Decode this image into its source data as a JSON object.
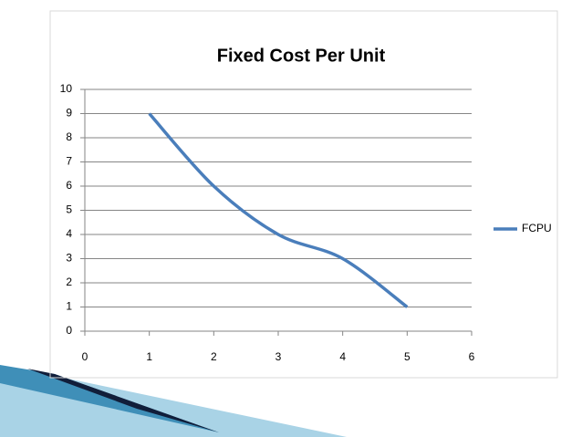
{
  "chart_data": {
    "type": "line",
    "title": "Fixed Cost Per Unit",
    "x": [
      1,
      2,
      3,
      4,
      5
    ],
    "series": [
      {
        "name": "FCPU",
        "color": "#4a7ebb",
        "values": [
          9,
          6,
          4,
          3,
          1
        ]
      }
    ],
    "xlim": [
      0,
      6
    ],
    "xticks": [
      0,
      1,
      2,
      3,
      4,
      5,
      6
    ],
    "ylim": [
      0,
      10
    ],
    "yticks": [
      0,
      1,
      2,
      3,
      4,
      5,
      6,
      7,
      8,
      9,
      10
    ],
    "grid": true,
    "smooth": true,
    "legend": "right"
  }
}
